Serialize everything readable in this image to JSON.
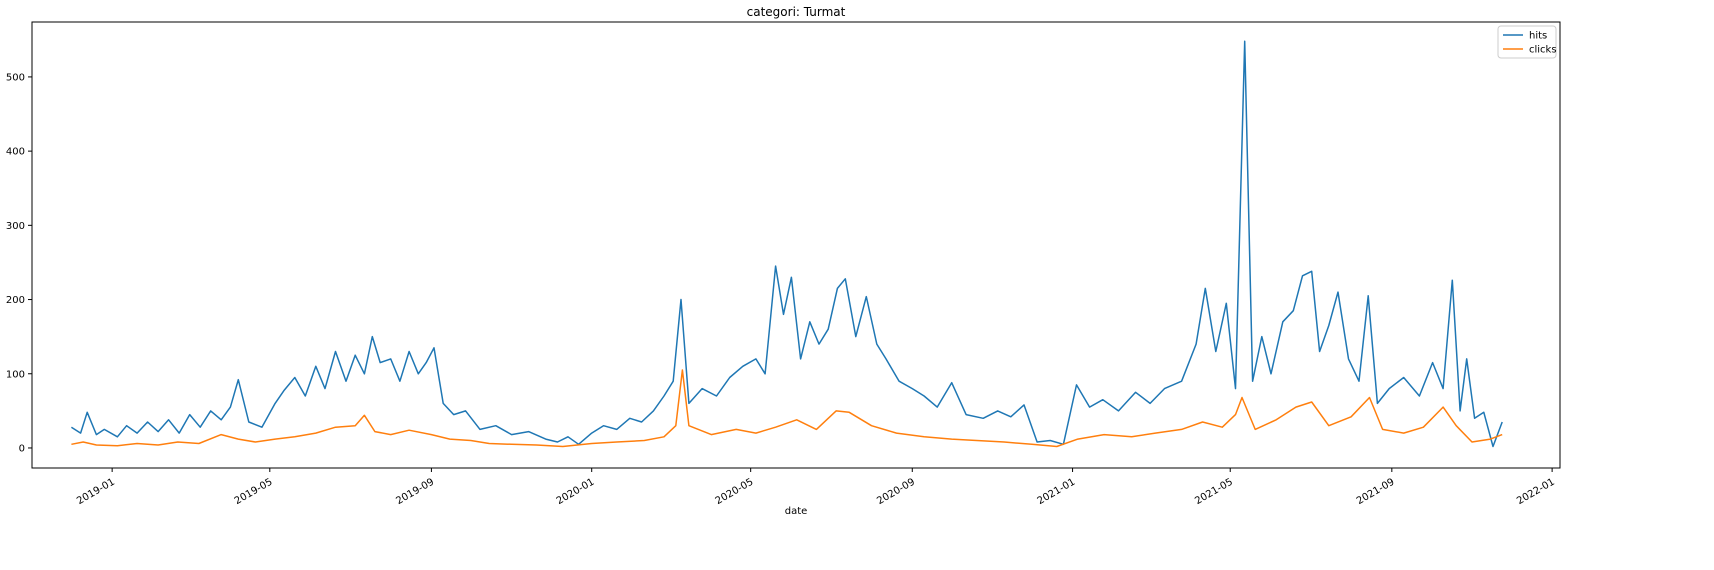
{
  "chart_data": {
    "type": "line",
    "title": "categori: Turmat",
    "xlabel": "date",
    "ylabel": "",
    "x_range": [
      "2018-11-01",
      "2022-01-07"
    ],
    "ylim": [
      -27,
      574
    ],
    "x_ticks": [
      {
        "date": "2019-01-01",
        "label": "2019-01"
      },
      {
        "date": "2019-05-01",
        "label": "2019-05"
      },
      {
        "date": "2019-09-01",
        "label": "2019-09"
      },
      {
        "date": "2020-01-01",
        "label": "2020-01"
      },
      {
        "date": "2020-05-01",
        "label": "2020-05"
      },
      {
        "date": "2020-09-01",
        "label": "2020-09"
      },
      {
        "date": "2021-01-01",
        "label": "2021-01"
      },
      {
        "date": "2021-05-01",
        "label": "2021-05"
      },
      {
        "date": "2021-09-01",
        "label": "2021-09"
      },
      {
        "date": "2022-01-01",
        "label": "2022-01"
      }
    ],
    "y_ticks": [
      0,
      100,
      200,
      300,
      400,
      500
    ],
    "grid": false,
    "legend_position": "top-right",
    "series": [
      {
        "name": "hits",
        "color": "#1f77b4",
        "points": [
          [
            "2018-12-01",
            28
          ],
          [
            "2018-12-08",
            20
          ],
          [
            "2018-12-13",
            48
          ],
          [
            "2018-12-20",
            18
          ],
          [
            "2018-12-26",
            25
          ],
          [
            "2019-01-05",
            15
          ],
          [
            "2019-01-12",
            30
          ],
          [
            "2019-01-20",
            20
          ],
          [
            "2019-01-28",
            35
          ],
          [
            "2019-02-05",
            22
          ],
          [
            "2019-02-13",
            38
          ],
          [
            "2019-02-21",
            20
          ],
          [
            "2019-03-01",
            45
          ],
          [
            "2019-03-09",
            28
          ],
          [
            "2019-03-17",
            50
          ],
          [
            "2019-03-25",
            38
          ],
          [
            "2019-04-01",
            55
          ],
          [
            "2019-04-07",
            92
          ],
          [
            "2019-04-15",
            35
          ],
          [
            "2019-04-25",
            28
          ],
          [
            "2019-05-05",
            60
          ],
          [
            "2019-05-12",
            78
          ],
          [
            "2019-05-20",
            95
          ],
          [
            "2019-05-28",
            70
          ],
          [
            "2019-06-05",
            110
          ],
          [
            "2019-06-12",
            80
          ],
          [
            "2019-06-20",
            130
          ],
          [
            "2019-06-28",
            90
          ],
          [
            "2019-07-05",
            125
          ],
          [
            "2019-07-12",
            100
          ],
          [
            "2019-07-18",
            150
          ],
          [
            "2019-07-24",
            115
          ],
          [
            "2019-08-01",
            120
          ],
          [
            "2019-08-08",
            90
          ],
          [
            "2019-08-15",
            130
          ],
          [
            "2019-08-22",
            100
          ],
          [
            "2019-08-28",
            115
          ],
          [
            "2019-09-03",
            135
          ],
          [
            "2019-09-10",
            60
          ],
          [
            "2019-09-18",
            45
          ],
          [
            "2019-09-27",
            50
          ],
          [
            "2019-10-08",
            25
          ],
          [
            "2019-10-20",
            30
          ],
          [
            "2019-11-01",
            18
          ],
          [
            "2019-11-14",
            22
          ],
          [
            "2019-11-27",
            12
          ],
          [
            "2019-12-06",
            8
          ],
          [
            "2019-12-14",
            15
          ],
          [
            "2019-12-22",
            5
          ],
          [
            "2020-01-01",
            20
          ],
          [
            "2020-01-10",
            30
          ],
          [
            "2020-01-20",
            25
          ],
          [
            "2020-01-30",
            40
          ],
          [
            "2020-02-08",
            35
          ],
          [
            "2020-02-17",
            50
          ],
          [
            "2020-02-25",
            70
          ],
          [
            "2020-03-03",
            90
          ],
          [
            "2020-03-09",
            200
          ],
          [
            "2020-03-15",
            60
          ],
          [
            "2020-03-25",
            80
          ],
          [
            "2020-04-05",
            70
          ],
          [
            "2020-04-15",
            95
          ],
          [
            "2020-04-25",
            110
          ],
          [
            "2020-05-05",
            120
          ],
          [
            "2020-05-12",
            100
          ],
          [
            "2020-05-20",
            245
          ],
          [
            "2020-05-26",
            180
          ],
          [
            "2020-06-01",
            230
          ],
          [
            "2020-06-08",
            120
          ],
          [
            "2020-06-15",
            170
          ],
          [
            "2020-06-22",
            140
          ],
          [
            "2020-06-29",
            160
          ],
          [
            "2020-07-06",
            215
          ],
          [
            "2020-07-12",
            228
          ],
          [
            "2020-07-20",
            150
          ],
          [
            "2020-07-28",
            204
          ],
          [
            "2020-08-05",
            140
          ],
          [
            "2020-08-12",
            120
          ],
          [
            "2020-08-22",
            90
          ],
          [
            "2020-09-01",
            80
          ],
          [
            "2020-09-10",
            70
          ],
          [
            "2020-09-20",
            55
          ],
          [
            "2020-10-01",
            88
          ],
          [
            "2020-10-12",
            45
          ],
          [
            "2020-10-25",
            40
          ],
          [
            "2020-11-05",
            50
          ],
          [
            "2020-11-15",
            42
          ],
          [
            "2020-11-25",
            58
          ],
          [
            "2020-12-05",
            8
          ],
          [
            "2020-12-15",
            10
          ],
          [
            "2020-12-25",
            5
          ],
          [
            "2021-01-04",
            85
          ],
          [
            "2021-01-14",
            55
          ],
          [
            "2021-01-24",
            65
          ],
          [
            "2021-02-05",
            50
          ],
          [
            "2021-02-18",
            75
          ],
          [
            "2021-03-01",
            60
          ],
          [
            "2021-03-12",
            80
          ],
          [
            "2021-03-25",
            90
          ],
          [
            "2021-04-05",
            140
          ],
          [
            "2021-04-12",
            215
          ],
          [
            "2021-04-20",
            130
          ],
          [
            "2021-04-28",
            195
          ],
          [
            "2021-05-05",
            80
          ],
          [
            "2021-05-12",
            548
          ],
          [
            "2021-05-18",
            90
          ],
          [
            "2021-05-25",
            150
          ],
          [
            "2021-06-01",
            100
          ],
          [
            "2021-06-10",
            170
          ],
          [
            "2021-06-18",
            185
          ],
          [
            "2021-06-25",
            232
          ],
          [
            "2021-07-02",
            238
          ],
          [
            "2021-07-08",
            130
          ],
          [
            "2021-07-15",
            165
          ],
          [
            "2021-07-22",
            210
          ],
          [
            "2021-07-30",
            120
          ],
          [
            "2021-08-07",
            90
          ],
          [
            "2021-08-14",
            205
          ],
          [
            "2021-08-21",
            60
          ],
          [
            "2021-08-30",
            80
          ],
          [
            "2021-09-10",
            95
          ],
          [
            "2021-09-22",
            70
          ],
          [
            "2021-10-02",
            115
          ],
          [
            "2021-10-10",
            80
          ],
          [
            "2021-10-17",
            226
          ],
          [
            "2021-10-23",
            50
          ],
          [
            "2021-10-28",
            120
          ],
          [
            "2021-11-03",
            40
          ],
          [
            "2021-11-10",
            48
          ],
          [
            "2021-11-17",
            2
          ],
          [
            "2021-11-24",
            35
          ]
        ]
      },
      {
        "name": "clicks",
        "color": "#ff7f0e",
        "points": [
          [
            "2018-12-01",
            5
          ],
          [
            "2018-12-10",
            8
          ],
          [
            "2018-12-20",
            4
          ],
          [
            "2019-01-05",
            3
          ],
          [
            "2019-01-20",
            6
          ],
          [
            "2019-02-05",
            4
          ],
          [
            "2019-02-20",
            8
          ],
          [
            "2019-03-08",
            6
          ],
          [
            "2019-03-25",
            18
          ],
          [
            "2019-04-07",
            12
          ],
          [
            "2019-04-20",
            8
          ],
          [
            "2019-05-05",
            12
          ],
          [
            "2019-05-20",
            15
          ],
          [
            "2019-06-05",
            20
          ],
          [
            "2019-06-20",
            28
          ],
          [
            "2019-07-05",
            30
          ],
          [
            "2019-07-12",
            44
          ],
          [
            "2019-07-20",
            22
          ],
          [
            "2019-08-01",
            18
          ],
          [
            "2019-08-15",
            24
          ],
          [
            "2019-09-01",
            18
          ],
          [
            "2019-09-15",
            12
          ],
          [
            "2019-10-01",
            10
          ],
          [
            "2019-10-15",
            6
          ],
          [
            "2019-11-01",
            5
          ],
          [
            "2019-11-20",
            4
          ],
          [
            "2019-12-10",
            2
          ],
          [
            "2020-01-01",
            6
          ],
          [
            "2020-01-20",
            8
          ],
          [
            "2020-02-10",
            10
          ],
          [
            "2020-02-25",
            15
          ],
          [
            "2020-03-05",
            30
          ],
          [
            "2020-03-10",
            105
          ],
          [
            "2020-03-15",
            30
          ],
          [
            "2020-04-01",
            18
          ],
          [
            "2020-04-20",
            25
          ],
          [
            "2020-05-05",
            20
          ],
          [
            "2020-05-20",
            28
          ],
          [
            "2020-06-05",
            38
          ],
          [
            "2020-06-20",
            25
          ],
          [
            "2020-07-05",
            50
          ],
          [
            "2020-07-15",
            48
          ],
          [
            "2020-08-01",
            30
          ],
          [
            "2020-08-20",
            20
          ],
          [
            "2020-09-10",
            15
          ],
          [
            "2020-10-01",
            12
          ],
          [
            "2020-10-20",
            10
          ],
          [
            "2020-11-10",
            8
          ],
          [
            "2020-12-01",
            5
          ],
          [
            "2020-12-20",
            2
          ],
          [
            "2021-01-05",
            12
          ],
          [
            "2021-01-25",
            18
          ],
          [
            "2021-02-15",
            15
          ],
          [
            "2021-03-05",
            20
          ],
          [
            "2021-03-25",
            25
          ],
          [
            "2021-04-10",
            35
          ],
          [
            "2021-04-25",
            28
          ],
          [
            "2021-05-05",
            45
          ],
          [
            "2021-05-10",
            68
          ],
          [
            "2021-05-20",
            25
          ],
          [
            "2021-06-05",
            38
          ],
          [
            "2021-06-20",
            55
          ],
          [
            "2021-07-02",
            62
          ],
          [
            "2021-07-15",
            30
          ],
          [
            "2021-08-01",
            42
          ],
          [
            "2021-08-15",
            68
          ],
          [
            "2021-08-25",
            25
          ],
          [
            "2021-09-10",
            20
          ],
          [
            "2021-09-25",
            28
          ],
          [
            "2021-10-10",
            55
          ],
          [
            "2021-10-20",
            30
          ],
          [
            "2021-11-01",
            8
          ],
          [
            "2021-11-15",
            12
          ],
          [
            "2021-11-24",
            18
          ]
        ]
      }
    ]
  }
}
